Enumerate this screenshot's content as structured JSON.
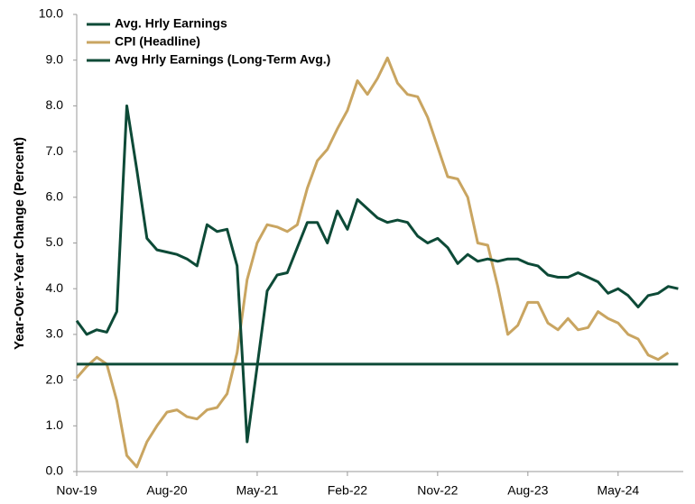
{
  "chart_data": {
    "type": "line",
    "ylabel": "Year-Over-Year Change (Percent)",
    "categories": [
      "Nov-19",
      null,
      null,
      null,
      null,
      null,
      null,
      null,
      null,
      "Aug-20",
      null,
      null,
      null,
      null,
      null,
      null,
      null,
      null,
      "May-21",
      null,
      null,
      null,
      null,
      null,
      null,
      null,
      null,
      "Feb-22",
      null,
      null,
      null,
      null,
      null,
      null,
      null,
      null,
      "Nov-22",
      null,
      null,
      null,
      null,
      null,
      null,
      null,
      null,
      "Aug-23",
      null,
      null,
      null,
      null,
      null,
      null,
      null,
      null,
      "May-24",
      null,
      null,
      null,
      null,
      null,
      null
    ],
    "series": [
      {
        "name": "Avg. Hrly Earnings",
        "color": "#0d4a37",
        "values": [
          3.3,
          3.0,
          3.1,
          3.05,
          3.5,
          8.0,
          6.6,
          5.1,
          4.85,
          4.8,
          4.75,
          4.65,
          4.5,
          5.4,
          5.25,
          5.3,
          4.5,
          0.65,
          2.3,
          3.95,
          4.3,
          4.35,
          4.9,
          5.45,
          5.45,
          5.0,
          5.7,
          5.3,
          5.95,
          5.75,
          5.55,
          5.45,
          5.5,
          5.45,
          5.15,
          5.0,
          5.1,
          4.9,
          4.55,
          4.75,
          4.6,
          4.65,
          4.6,
          4.65,
          4.65,
          4.55,
          4.5,
          4.3,
          4.25,
          4.25,
          4.35,
          4.25,
          4.15,
          3.9,
          4.0,
          3.85,
          3.6,
          3.85,
          3.9,
          4.05,
          4.0
        ]
      },
      {
        "name": "CPI (Headline)",
        "color": "#c9a561",
        "values": [
          2.05,
          2.3,
          2.5,
          2.35,
          1.55,
          0.35,
          0.1,
          0.65,
          1.0,
          1.3,
          1.35,
          1.2,
          1.15,
          1.35,
          1.4,
          1.7,
          2.6,
          4.2,
          5.0,
          5.4,
          5.35,
          5.25,
          5.4,
          6.2,
          6.8,
          7.05,
          7.5,
          7.9,
          8.55,
          8.25,
          8.6,
          9.05,
          8.5,
          8.25,
          8.2,
          7.75,
          7.1,
          6.45,
          6.4,
          6.0,
          5.0,
          4.95,
          4.05,
          3.0,
          3.2,
          3.7,
          3.7,
          3.25,
          3.1,
          3.35,
          3.1,
          3.15,
          3.5,
          3.35,
          3.25,
          3.0,
          2.9,
          2.55,
          2.45,
          2.6,
          null
        ]
      },
      {
        "name": "Avg Hrly Earnings (Long-Term Avg.)",
        "color": "#0d4a37",
        "values": [
          2.35,
          2.35,
          2.35,
          2.35,
          2.35,
          2.35,
          2.35,
          2.35,
          2.35,
          2.35,
          2.35,
          2.35,
          2.35,
          2.35,
          2.35,
          2.35,
          2.35,
          2.35,
          2.35,
          2.35,
          2.35,
          2.35,
          2.35,
          2.35,
          2.35,
          2.35,
          2.35,
          2.35,
          2.35,
          2.35,
          2.35,
          2.35,
          2.35,
          2.35,
          2.35,
          2.35,
          2.35,
          2.35,
          2.35,
          2.35,
          2.35,
          2.35,
          2.35,
          2.35,
          2.35,
          2.35,
          2.35,
          2.35,
          2.35,
          2.35,
          2.35,
          2.35,
          2.35,
          2.35,
          2.35,
          2.35,
          2.35,
          2.35,
          2.35,
          2.35,
          2.35
        ]
      }
    ],
    "ylim": [
      0,
      10
    ],
    "yticks": [
      {
        "value": 0,
        "label": "0.0"
      },
      {
        "value": 1,
        "label": "1.0"
      },
      {
        "value": 2,
        "label": "2.0"
      },
      {
        "value": 3,
        "label": "3.0"
      },
      {
        "value": 4,
        "label": "4.0"
      },
      {
        "value": 5,
        "label": "5.0"
      },
      {
        "value": 6,
        "label": "6.0"
      },
      {
        "value": 7,
        "label": "7.0"
      },
      {
        "value": 8,
        "label": "8.0"
      },
      {
        "value": 9,
        "label": "9.0"
      },
      {
        "value": 10,
        "label": "10.0"
      }
    ],
    "legend": "upper-left"
  }
}
